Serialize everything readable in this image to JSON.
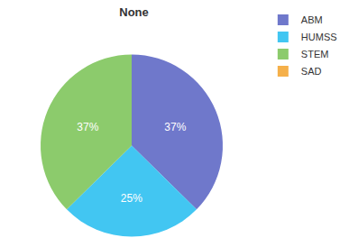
{
  "chart_data": {
    "type": "pie",
    "title": "None",
    "categories": [
      "ABM",
      "HUMSS",
      "STEM",
      "SAD"
    ],
    "values": [
      37,
      25,
      37,
      0
    ],
    "value_labels": [
      "37%",
      "25%",
      "37%",
      null
    ],
    "colors": [
      "#6f78cb",
      "#42c6f2",
      "#8ccb6c",
      "#f5b04a"
    ],
    "data_labels": true,
    "legend": "top right"
  }
}
